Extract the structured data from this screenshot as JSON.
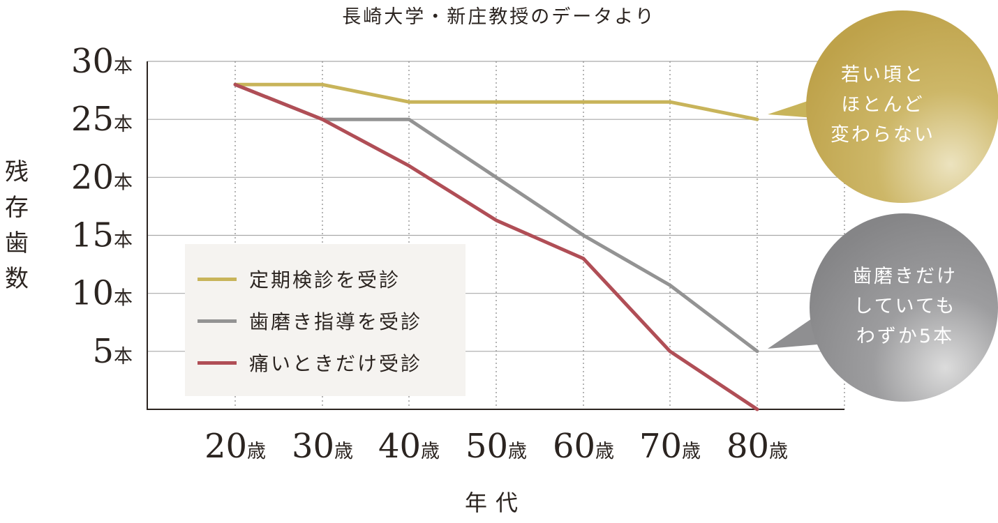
{
  "source_note": "長崎大学・新庄教授のデータより",
  "chart_data": {
    "type": "line",
    "xlabel": "年代",
    "ylabel": "残存歯数",
    "categories": [
      "20歳",
      "30歳",
      "40歳",
      "50歳",
      "60歳",
      "70歳",
      "80歳"
    ],
    "x_ticks": [
      {
        "num": "20",
        "unit": "歳"
      },
      {
        "num": "30",
        "unit": "歳"
      },
      {
        "num": "40",
        "unit": "歳"
      },
      {
        "num": "50",
        "unit": "歳"
      },
      {
        "num": "60",
        "unit": "歳"
      },
      {
        "num": "70",
        "unit": "歳"
      },
      {
        "num": "80",
        "unit": "歳"
      }
    ],
    "y_ticks": [
      {
        "value": 5,
        "num": "5",
        "unit": "本"
      },
      {
        "value": 10,
        "num": "10",
        "unit": "本"
      },
      {
        "value": 15,
        "num": "15",
        "unit": "本"
      },
      {
        "value": 20,
        "num": "20",
        "unit": "本"
      },
      {
        "value": 25,
        "num": "25",
        "unit": "本"
      },
      {
        "value": 30,
        "num": "30",
        "unit": "本"
      }
    ],
    "ylim": [
      0,
      30
    ],
    "grid": "horizontal solid, vertical dotted",
    "legend_position": "lower-left inside plot",
    "series": [
      {
        "name": "定期検診を受診",
        "color": "#c8b45a",
        "values": [
          28,
          28,
          26.5,
          26.5,
          26.5,
          26.5,
          25
        ]
      },
      {
        "name": "歯磨き指導を受診",
        "color": "#939393",
        "values": [
          28,
          25,
          25,
          20,
          15,
          10.7,
          5
        ]
      },
      {
        "name": "痛いときだけ受診",
        "color": "#b04e56",
        "values": [
          28,
          25,
          21,
          16.3,
          13,
          5,
          0
        ]
      }
    ]
  },
  "callouts": [
    {
      "lines": [
        "若い頃と",
        "ほとんど",
        "変わらない"
      ],
      "color": "#c8b45a",
      "points_to": "定期検診を受診 80歳"
    },
    {
      "lines": [
        "歯磨きだけ",
        "していても",
        "わずか5本"
      ],
      "color": "#8f8f91",
      "points_to": "歯磨き指導を受診 80歳"
    }
  ]
}
